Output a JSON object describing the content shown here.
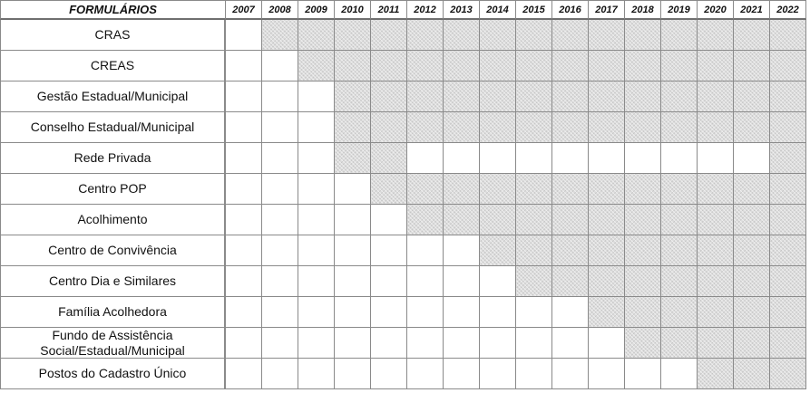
{
  "table": {
    "header_label": "FORMULÁRIOS",
    "years": [
      "2007",
      "2008",
      "2009",
      "2010",
      "2011",
      "2012",
      "2013",
      "2014",
      "2015",
      "2016",
      "2017",
      "2018",
      "2019",
      "2020",
      "2021",
      "2022"
    ],
    "rows": [
      {
        "label": "CRAS",
        "shaded": [
          0,
          1,
          1,
          1,
          1,
          1,
          1,
          1,
          1,
          1,
          1,
          1,
          1,
          1,
          1,
          1
        ]
      },
      {
        "label": "CREAS",
        "shaded": [
          0,
          0,
          1,
          1,
          1,
          1,
          1,
          1,
          1,
          1,
          1,
          1,
          1,
          1,
          1,
          1
        ]
      },
      {
        "label": "Gestão Estadual/Municipal",
        "shaded": [
          0,
          0,
          0,
          1,
          1,
          1,
          1,
          1,
          1,
          1,
          1,
          1,
          1,
          1,
          1,
          1
        ]
      },
      {
        "label": "Conselho Estadual/Municipal",
        "shaded": [
          0,
          0,
          0,
          1,
          1,
          1,
          1,
          1,
          1,
          1,
          1,
          1,
          1,
          1,
          1,
          1
        ]
      },
      {
        "label": "Rede Privada",
        "shaded": [
          0,
          0,
          0,
          1,
          1,
          0,
          0,
          0,
          0,
          0,
          0,
          0,
          0,
          0,
          0,
          1
        ]
      },
      {
        "label": "Centro POP",
        "shaded": [
          0,
          0,
          0,
          0,
          1,
          1,
          1,
          1,
          1,
          1,
          1,
          1,
          1,
          1,
          1,
          1
        ]
      },
      {
        "label": "Acolhimento",
        "shaded": [
          0,
          0,
          0,
          0,
          0,
          1,
          1,
          1,
          1,
          1,
          1,
          1,
          1,
          1,
          1,
          1
        ]
      },
      {
        "label": "Centro de Convivência",
        "shaded": [
          0,
          0,
          0,
          0,
          0,
          0,
          0,
          1,
          1,
          1,
          1,
          1,
          1,
          1,
          1,
          1
        ]
      },
      {
        "label": "Centro Dia e Similares",
        "shaded": [
          0,
          0,
          0,
          0,
          0,
          0,
          0,
          0,
          1,
          1,
          1,
          1,
          1,
          1,
          1,
          1
        ]
      },
      {
        "label": "Família Acolhedora",
        "shaded": [
          0,
          0,
          0,
          0,
          0,
          0,
          0,
          0,
          0,
          0,
          1,
          1,
          1,
          1,
          1,
          1
        ]
      },
      {
        "label": "Fundo de Assistência Social/Estadual/Municipal",
        "shaded": [
          0,
          0,
          0,
          0,
          0,
          0,
          0,
          0,
          0,
          0,
          0,
          1,
          1,
          1,
          1,
          1
        ]
      },
      {
        "label": "Postos do Cadastro Único",
        "shaded": [
          0,
          0,
          0,
          0,
          0,
          0,
          0,
          0,
          0,
          0,
          0,
          0,
          0,
          1,
          1,
          1
        ]
      }
    ]
  }
}
